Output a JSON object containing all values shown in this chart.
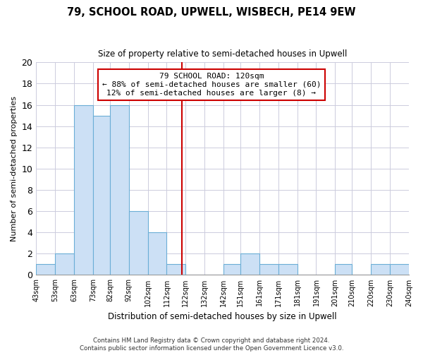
{
  "title": "79, SCHOOL ROAD, UPWELL, WISBECH, PE14 9EW",
  "subtitle": "Size of property relative to semi-detached houses in Upwell",
  "xlabel": "Distribution of semi-detached houses by size in Upwell",
  "ylabel": "Number of semi-detached properties",
  "bar_color": "#cce0f5",
  "bar_edge_color": "#6baed6",
  "bins": [
    43,
    53,
    63,
    73,
    82,
    92,
    102,
    112,
    122,
    132,
    142,
    151,
    161,
    171,
    181,
    191,
    201,
    210,
    220,
    230,
    240
  ],
  "bin_labels": [
    "43sqm",
    "53sqm",
    "63sqm",
    "73sqm",
    "82sqm",
    "92sqm",
    "102sqm",
    "112sqm",
    "122sqm",
    "132sqm",
    "142sqm",
    "151sqm",
    "161sqm",
    "171sqm",
    "181sqm",
    "191sqm",
    "201sqm",
    "210sqm",
    "220sqm",
    "230sqm",
    "240sqm"
  ],
  "counts": [
    1,
    2,
    16,
    15,
    16,
    6,
    4,
    1,
    0,
    0,
    1,
    2,
    1,
    1,
    0,
    0,
    1,
    0,
    1,
    1
  ],
  "vline_color": "#cc0000",
  "vline_x": 120,
  "annotation_line1": "79 SCHOOL ROAD: 120sqm",
  "annotation_line2": "← 88% of semi-detached houses are smaller (60)",
  "annotation_line3": "12% of semi-detached houses are larger (8) →",
  "annotation_box_color": "#ffffff",
  "annotation_box_edge_color": "#cc0000",
  "ylim": [
    0,
    20
  ],
  "yticks": [
    0,
    2,
    4,
    6,
    8,
    10,
    12,
    14,
    16,
    18,
    20
  ],
  "grid_color": "#ccccdd",
  "footer_text": "Contains HM Land Registry data © Crown copyright and database right 2024.\nContains public sector information licensed under the Open Government Licence v3.0.",
  "background_color": "#ffffff"
}
